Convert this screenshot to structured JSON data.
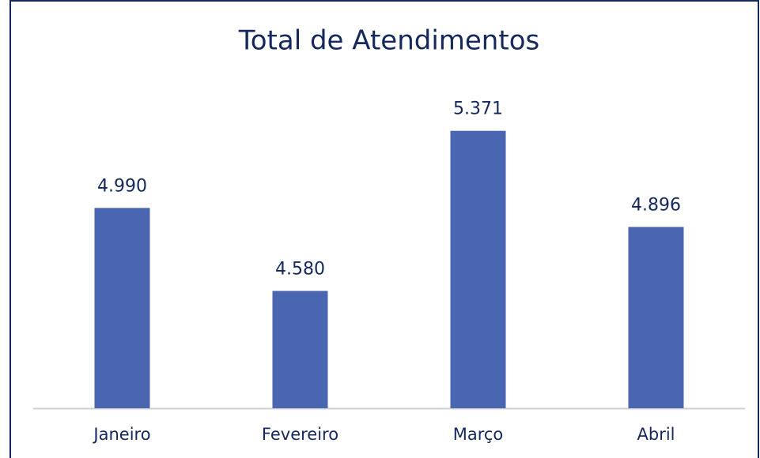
{
  "chart_data": {
    "type": "bar",
    "title": "Total de Atendimentos",
    "categories": [
      "Janeiro",
      "Fevereiro",
      "Março",
      "Abril"
    ],
    "values": [
      4990,
      4580,
      5371,
      4896
    ],
    "value_labels": [
      "4.990",
      "4.580",
      "5.371",
      "4.896"
    ],
    "color": "#4a66b0",
    "ylim": [
      4000,
      5600
    ]
  }
}
